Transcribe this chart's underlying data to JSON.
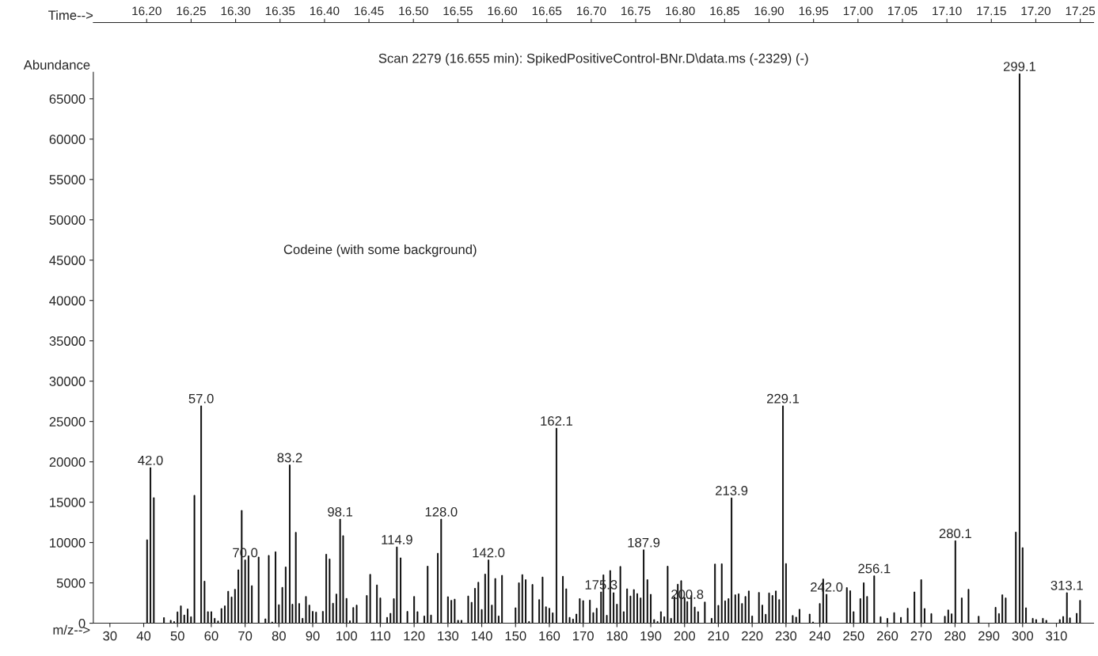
{
  "chart_data": {
    "type": "bar",
    "title": "Scan 2279 (16.655 min): SpikedPositiveControl-BNr.D\\data.ms (-2329) (-)",
    "xlabel": "m/z-->",
    "ylabel": "Abundance",
    "x2label": "Time-->",
    "annotations": [
      "Codeine (with some background)",
      {
        "text": "42.0",
        "x": 42.0,
        "y": 19280
      },
      {
        "text": "57.0",
        "x": 57.0,
        "y": 26940
      },
      {
        "text": "70.0",
        "x": 70.0,
        "y": 7840
      },
      {
        "text": "83.2",
        "x": 83.2,
        "y": 19610
      },
      {
        "text": "98.1",
        "x": 98.1,
        "y": 12900
      },
      {
        "text": "114.9",
        "x": 114.9,
        "y": 9450
      },
      {
        "text": "128.0",
        "x": 128.0,
        "y": 12900
      },
      {
        "text": "142.0",
        "x": 142.0,
        "y": 7840
      },
      {
        "text": "162.1",
        "x": 162.1,
        "y": 24170
      },
      {
        "text": "175.3",
        "x": 175.3,
        "y": 3870
      },
      {
        "text": "187.9",
        "x": 187.9,
        "y": 9090
      },
      {
        "text": "200.8",
        "x": 200.8,
        "y": 2680
      },
      {
        "text": "213.9",
        "x": 213.9,
        "y": 15530
      },
      {
        "text": "229.1",
        "x": 229.1,
        "y": 26940
      },
      {
        "text": "242.0",
        "x": 242.0,
        "y": 3580
      },
      {
        "text": "256.1",
        "x": 256.1,
        "y": 5870
      },
      {
        "text": "280.1",
        "x": 280.1,
        "y": 10220
      },
      {
        "text": "299.1",
        "x": 299.1,
        "y": 68100
      },
      {
        "text": "313.1",
        "x": 313.1,
        "y": 3780
      }
    ],
    "series": [
      {
        "color": "#000000",
        "x": [
          41,
          43,
          46,
          48,
          49,
          50,
          51,
          52,
          53,
          54,
          55,
          58,
          59,
          60,
          61,
          62,
          63,
          64,
          65,
          66,
          67,
          68,
          69,
          71,
          72,
          74,
          76,
          77,
          78,
          79,
          80,
          81,
          82,
          84,
          85,
          86,
          87,
          88,
          89,
          90,
          91,
          93,
          94,
          95,
          96,
          97,
          99,
          100,
          101,
          102,
          103,
          106,
          107,
          109,
          110,
          112,
          113,
          114,
          116,
          118,
          120,
          121,
          123,
          124,
          125,
          127,
          130,
          131,
          132,
          133,
          134,
          136,
          137,
          138,
          139,
          140,
          141,
          143,
          144,
          145,
          146,
          150,
          151,
          152,
          153,
          154,
          155,
          157,
          158,
          159,
          160,
          161,
          164,
          165,
          166,
          167,
          168,
          169,
          170,
          172,
          173,
          174,
          176,
          177,
          178,
          179,
          180,
          181,
          182,
          183,
          184,
          185,
          186,
          187,
          189,
          190,
          191,
          192,
          193,
          194,
          195,
          196,
          197,
          198,
          199,
          200,
          202,
          203,
          204,
          206,
          208,
          209,
          210,
          211,
          212,
          213,
          215,
          216,
          217,
          218,
          219,
          220,
          222,
          223,
          224,
          225,
          226,
          227,
          228,
          230,
          232,
          233,
          234,
          237,
          238,
          240,
          241,
          248,
          249,
          250,
          252,
          253,
          254,
          258,
          260,
          262,
          264,
          266,
          268,
          270,
          271,
          273,
          277,
          278,
          279,
          282,
          284,
          287,
          292,
          293,
          294,
          295,
          298,
          300,
          301,
          303,
          304,
          306,
          307,
          311,
          312,
          314,
          316,
          317
        ],
        "values": [
          10340,
          15560,
          690,
          360,
          200,
          1400,
          2150,
          1010,
          1760,
          800,
          15850,
          5210,
          1430,
          1430,
          600,
          270,
          1820,
          2150,
          3960,
          3250,
          4200,
          6620,
          13980,
          8340,
          4650,
          8200,
          540,
          8400,
          150,
          8850,
          2290,
          4440,
          6970,
          2350,
          11260,
          2440,
          600,
          3310,
          2240,
          1460,
          1370,
          1460,
          8550,
          7960,
          2470,
          3610,
          10850,
          3070,
          300,
          1940,
          2240,
          3430,
          6050,
          4740,
          3130,
          720,
          1220,
          3040,
          8100,
          1460,
          3310,
          1430,
          890,
          7060,
          1010,
          8670,
          3280,
          2830,
          2980,
          360,
          360,
          3370,
          2590,
          4320,
          5070,
          1700,
          6080,
          2240,
          5540,
          890,
          5930,
          1910,
          5010,
          6020,
          5390,
          210,
          4800,
          2920,
          5720,
          2030,
          1850,
          1280,
          5810,
          4260,
          720,
          510,
          1130,
          3040,
          2800,
          2860,
          1310,
          1850,
          5990,
          980,
          6530,
          3780,
          2350,
          7030,
          1430,
          4260,
          3370,
          4170,
          3670,
          3130,
          5390,
          3580,
          450,
          210,
          1430,
          800,
          7060,
          600,
          3280,
          4830,
          5270,
          3190,
          3430,
          2000,
          1430,
          2620,
          600,
          7330,
          2210,
          7360,
          2770,
          3040,
          3520,
          3640,
          2440,
          3310,
          3990,
          890,
          3810,
          2240,
          1100,
          3750,
          3430,
          3990,
          2920,
          7390,
          950,
          750,
          1730,
          1130,
          150,
          2440,
          5480,
          4410,
          4020,
          1430,
          3040,
          5010,
          3310,
          800,
          600,
          1310,
          720,
          1850,
          3870,
          5390,
          1820,
          1190,
          860,
          1640,
          1160,
          3130,
          4200,
          860,
          1970,
          1190,
          3520,
          3130,
          11290,
          9360,
          1910,
          600,
          450,
          600,
          360,
          450,
          830,
          660,
          1220,
          2830
        ]
      },
      {
        "color": "#000000",
        "x": [
          42.0,
          57.0,
          70.0,
          83.2,
          98.1,
          114.9,
          128.0,
          142.0,
          162.1,
          175.3,
          187.9,
          200.8,
          213.9,
          229.1,
          242.0,
          256.1,
          280.1,
          299.1,
          313.1
        ],
        "values": [
          19280,
          26940,
          7840,
          19610,
          12900,
          9450,
          12900,
          7840,
          24170,
          3870,
          9090,
          2680,
          15530,
          26940,
          3580,
          5870,
          10220,
          68100,
          3780
        ]
      }
    ],
    "xlim": [
      25.1,
      321
    ],
    "xticks": [
      30,
      40,
      50,
      60,
      70,
      80,
      90,
      100,
      110,
      120,
      130,
      140,
      150,
      160,
      170,
      180,
      190,
      200,
      210,
      220,
      230,
      240,
      250,
      260,
      270,
      280,
      290,
      300,
      310
    ],
    "ylim": [
      0,
      68300
    ],
    "yticks": [
      0,
      5000,
      10000,
      15000,
      20000,
      25000,
      30000,
      35000,
      40000,
      45000,
      50000,
      55000,
      60000,
      65000
    ],
    "x2lim": [
      16.14,
      17.265
    ],
    "x2ticks": [
      {
        "value": 16.2,
        "label": "16.20"
      },
      {
        "value": 16.25,
        "label": "16.25"
      },
      {
        "value": 16.3,
        "label": "16.30"
      },
      {
        "value": 16.35,
        "label": "16.35"
      },
      {
        "value": 16.4,
        "label": "16.40"
      },
      {
        "value": 16.45,
        "label": "16.45"
      },
      {
        "value": 16.5,
        "label": "16.50"
      },
      {
        "value": 16.55,
        "label": "16.55"
      },
      {
        "value": 16.6,
        "label": "16.60"
      },
      {
        "value": 16.65,
        "label": "16.65"
      },
      {
        "value": 16.7,
        "label": "16.70"
      },
      {
        "value": 16.75,
        "label": "16.75"
      },
      {
        "value": 16.8,
        "label": "16.80"
      },
      {
        "value": 16.85,
        "label": "16.85"
      },
      {
        "value": 16.9,
        "label": "16.90"
      },
      {
        "value": 16.95,
        "label": "16.95"
      },
      {
        "value": 17.0,
        "label": "17.00"
      },
      {
        "value": 17.05,
        "label": "17.05"
      },
      {
        "value": 17.1,
        "label": "17.10"
      },
      {
        "value": 17.15,
        "label": "17.15"
      },
      {
        "value": 17.2,
        "label": "17.20"
      },
      {
        "value": 17.25,
        "label": "17.25"
      }
    ],
    "grid": false
  }
}
